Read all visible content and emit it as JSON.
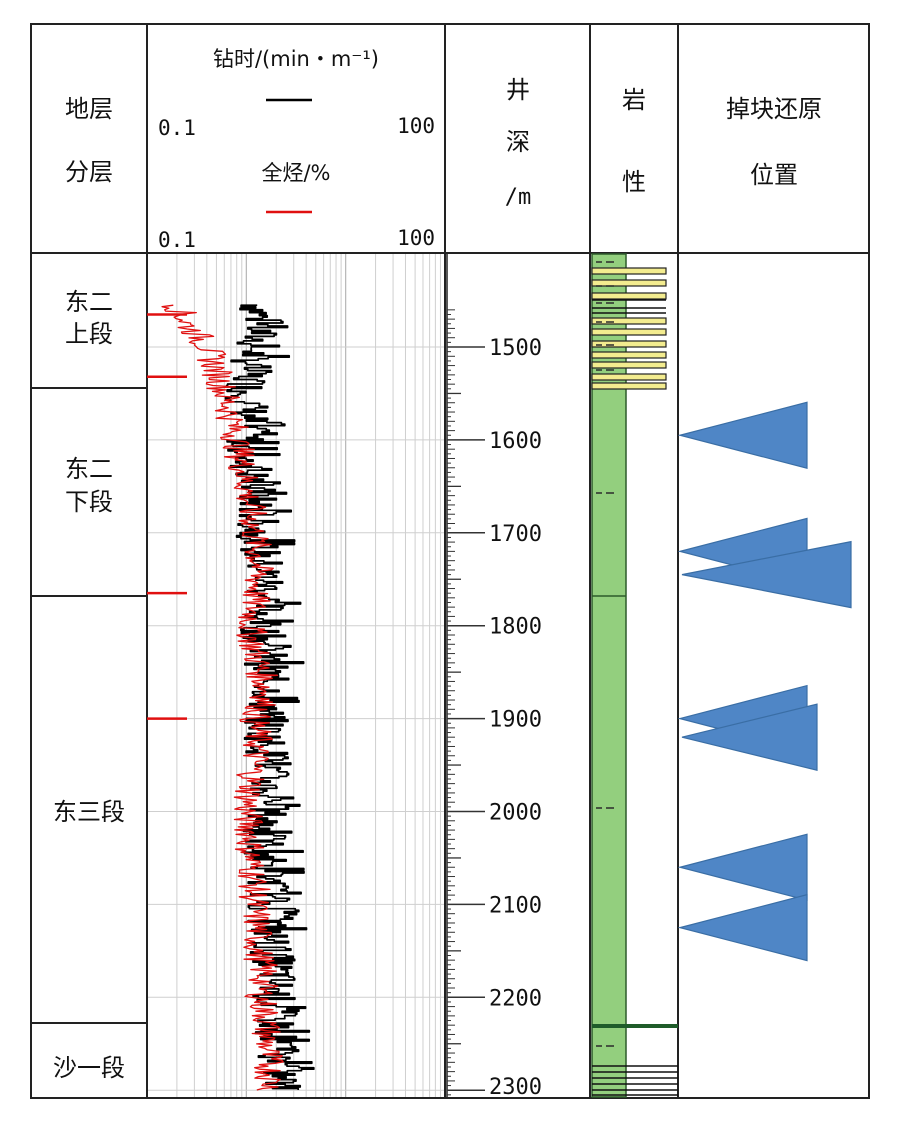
{
  "header": {
    "strata_col": [
      "地层",
      "分层"
    ],
    "drill_time": {
      "label": "钻时/(min・m⁻¹)",
      "min": "0.1",
      "max": "100"
    },
    "total_hc": {
      "label": "全烃/%",
      "min": "0.1",
      "max": "100"
    },
    "depth_col": [
      "井",
      "深",
      "/m"
    ],
    "lith_col": [
      "岩",
      "性"
    ],
    "cavings_col": [
      "掉块还原",
      "位置"
    ]
  },
  "strata": [
    {
      "lines": [
        "东二",
        "上段"
      ],
      "top": 1455,
      "bottom": 1528
    },
    {
      "lines": [
        "东二",
        "下段"
      ],
      "top": 1528,
      "bottom": 1765
    },
    {
      "lines": [
        "东三段"
      ],
      "top": 1765,
      "bottom": 2230
    },
    {
      "lines": [
        "沙一段"
      ],
      "top": 2230,
      "bottom": 2310
    }
  ],
  "depth_ticks": [
    "1500",
    "1600",
    "1700",
    "1800",
    "1900",
    "2000",
    "2100",
    "2200",
    "2300"
  ],
  "cavings_depths_m": [
    1595,
    1720,
    1745,
    1900,
    1920,
    2060,
    2125
  ],
  "colors": {
    "drill_time": "#000000",
    "total_hc": "#e01010",
    "lith_green": "#93cf7e",
    "lith_yellow": "#f3ec8f",
    "marker": "#4f86c6",
    "grid": "#cfcfcf"
  },
  "chart_data": {
    "type": "line",
    "title": "",
    "xscale": "log",
    "xlim": [
      0.1,
      100
    ],
    "ylim": [
      1455,
      2310
    ],
    "ylabel": "井深/m",
    "series": [
      {
        "name": "钻时/(min・m⁻¹)",
        "color": "#000000",
        "y": [
          1455,
          1475,
          1500,
          1525,
          1550,
          1575,
          1600,
          1625,
          1650,
          1675,
          1700,
          1725,
          1750,
          1775,
          1800,
          1825,
          1850,
          1875,
          1900,
          1925,
          1950,
          1975,
          2000,
          2025,
          2050,
          2075,
          2100,
          2125,
          2150,
          2175,
          2200,
          2225,
          2250,
          2275,
          2300
        ],
        "x": [
          1.3,
          1.4,
          1.2,
          1.1,
          1.0,
          1.1,
          1.0,
          1.1,
          1.2,
          1.3,
          1.3,
          1.4,
          1.6,
          1.6,
          1.4,
          1.6,
          1.6,
          1.8,
          1.5,
          1.6,
          1.7,
          1.6,
          1.6,
          1.5,
          1.6,
          1.7,
          1.7,
          1.7,
          1.8,
          2.0,
          1.9,
          2.0,
          2.1,
          2.2,
          2.3
        ]
      },
      {
        "name": "全烃/%",
        "color": "#e01010",
        "y": [
          1455,
          1475,
          1500,
          1525,
          1550,
          1575,
          1600,
          1625,
          1650,
          1675,
          1700,
          1725,
          1750,
          1775,
          1800,
          1825,
          1850,
          1875,
          1900,
          1925,
          1950,
          1975,
          2000,
          2025,
          2050,
          2075,
          2100,
          2125,
          2150,
          2175,
          2200,
          2225,
          2250,
          2275,
          2300
        ],
        "x": [
          0.2,
          0.25,
          0.4,
          0.5,
          0.6,
          0.7,
          0.8,
          0.9,
          1.0,
          1.1,
          1.2,
          1.3,
          1.3,
          1.2,
          1.1,
          1.2,
          1.4,
          1.6,
          1.2,
          1.3,
          1.2,
          1.1,
          1.0,
          1.1,
          1.1,
          1.2,
          1.2,
          1.3,
          1.3,
          1.5,
          1.4,
          1.6,
          1.6,
          1.7,
          1.8
        ]
      }
    ]
  }
}
